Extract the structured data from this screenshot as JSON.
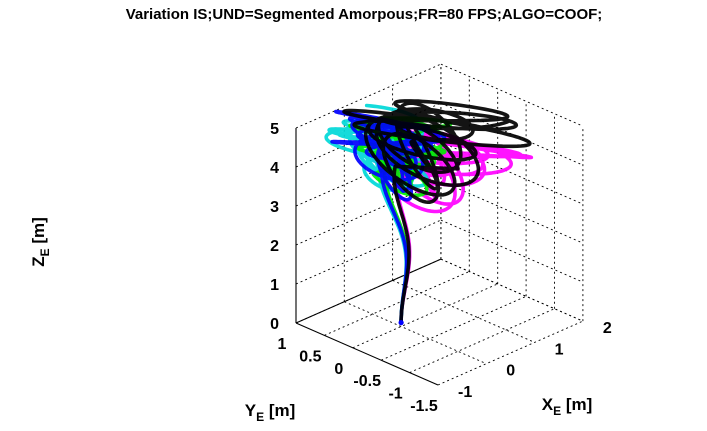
{
  "chart_data": {
    "type": "line3d",
    "title": "Variation IS;UND=Segmented Amorpous;FR=80 FPS;ALGO=COOF;",
    "axes": {
      "x": {
        "label_main": "X",
        "label_sub": "E",
        "label_unit": " [m]",
        "range": [
          -1,
          2
        ],
        "ticks": [
          -1,
          0,
          1,
          2
        ],
        "tick_labels": [
          "-1",
          "0",
          "1",
          "2"
        ]
      },
      "y": {
        "label_main": "Y",
        "label_sub": "E",
        "label_unit": " [m]",
        "range": [
          -1.5,
          1
        ],
        "ticks": [
          1,
          0.5,
          0,
          -0.5,
          -1,
          -1.5
        ],
        "tick_labels": [
          "1",
          "0.5",
          "0",
          "-0.5",
          "-1",
          "-1.5"
        ]
      },
      "z": {
        "label_main": "Z",
        "label_sub": "E",
        "label_unit": " [m]",
        "range": [
          0,
          5
        ],
        "ticks": [
          0,
          1,
          2,
          3,
          4,
          5
        ],
        "tick_labels": [
          "0",
          "1",
          "2",
          "3",
          "4",
          "5"
        ]
      }
    },
    "grid": true,
    "start_point": {
      "x": 0,
      "y": 0,
      "z": 0.1
    },
    "series": [
      {
        "color": "#ff00ff",
        "dx": 0.5,
        "dy": -0.35,
        "radius": 0.85,
        "z_level": 4.5
      },
      {
        "color": "#00d8d8",
        "dx": -0.1,
        "dy": 0.3,
        "radius": 0.6,
        "z_level": 4.95
      },
      {
        "color": "#00ee00",
        "dx": 0.1,
        "dy": 0.1,
        "radius": 0.55,
        "z_level": 4.85
      },
      {
        "color": "#0000ff",
        "dx": 0.0,
        "dy": 0.2,
        "radius": 0.6,
        "z_level": 5.0
      },
      {
        "color": "#000000",
        "dx": 0.7,
        "dy": 0.0,
        "radius": 1.0,
        "z_level": 5.0
      }
    ]
  }
}
